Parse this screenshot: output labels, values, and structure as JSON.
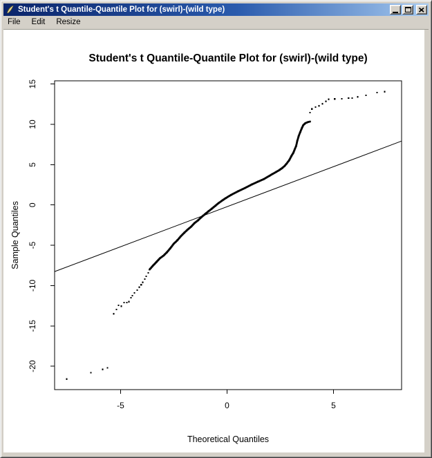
{
  "window": {
    "title": "Student's t Quantile-Quantile Plot for (swirl)-(wild type)",
    "icon_name": "quill-feather-icon",
    "buttons": [
      {
        "name": "minimize"
      },
      {
        "name": "maximize"
      },
      {
        "name": "close"
      }
    ]
  },
  "menu": {
    "items": [
      {
        "label": "File"
      },
      {
        "label": "Edit"
      },
      {
        "label": "Resize"
      }
    ]
  },
  "chart_data": {
    "type": "scatter",
    "title": "Student's t Quantile-Quantile Plot for (swirl)-(wild type)",
    "xlabel": "Theoretical Quantiles",
    "ylabel": "Sample Quantiles",
    "xlim": [
      -8.1,
      8.2
    ],
    "ylim": [
      -22.9,
      15.4
    ],
    "x_ticks": [
      -5,
      0,
      5
    ],
    "y_ticks": [
      15,
      10,
      5,
      0,
      -5,
      -10,
      -15,
      -20
    ],
    "grid": false,
    "legend": null,
    "point_color": "#000000",
    "line_color": "#000000",
    "reference_line": {
      "x1": -8.1,
      "y1": -8.26,
      "x2": 8.2,
      "y2": 7.93
    },
    "dense_curve": [
      [
        -3.64,
        -8.0
      ],
      [
        -3.47,
        -7.5
      ],
      [
        -3.31,
        -7.05
      ],
      [
        -3.15,
        -6.6
      ],
      [
        -2.99,
        -6.3
      ],
      [
        -2.82,
        -5.85
      ],
      [
        -2.66,
        -5.35
      ],
      [
        -2.5,
        -4.8
      ],
      [
        -2.34,
        -4.4
      ],
      [
        -2.18,
        -3.9
      ],
      [
        -2.01,
        -3.45
      ],
      [
        -1.85,
        -3.05
      ],
      [
        -1.69,
        -2.7
      ],
      [
        -1.53,
        -2.25
      ],
      [
        -1.36,
        -1.9
      ],
      [
        -1.2,
        -1.5
      ],
      [
        -1.04,
        -1.15
      ],
      [
        -0.88,
        -0.8
      ],
      [
        -0.71,
        -0.45
      ],
      [
        -0.55,
        -0.1
      ],
      [
        -0.39,
        0.25
      ],
      [
        -0.23,
        0.55
      ],
      [
        -0.06,
        0.85
      ],
      [
        0.19,
        1.25
      ],
      [
        0.52,
        1.7
      ],
      [
        0.84,
        2.1
      ],
      [
        1.17,
        2.55
      ],
      [
        1.46,
        2.9
      ],
      [
        1.72,
        3.2
      ],
      [
        1.98,
        3.6
      ],
      [
        2.14,
        3.85
      ],
      [
        2.31,
        4.1
      ],
      [
        2.47,
        4.35
      ],
      [
        2.6,
        4.6
      ],
      [
        2.69,
        4.8
      ],
      [
        2.79,
        5.1
      ],
      [
        2.92,
        5.55
      ],
      [
        3.02,
        6.05
      ],
      [
        3.12,
        6.5
      ],
      [
        3.18,
        6.9
      ],
      [
        3.25,
        7.35
      ],
      [
        3.3,
        7.95
      ],
      [
        3.36,
        8.5
      ],
      [
        3.44,
        9.05
      ],
      [
        3.51,
        9.5
      ],
      [
        3.58,
        9.9
      ],
      [
        3.68,
        10.15
      ],
      [
        3.8,
        10.28
      ],
      [
        3.9,
        10.35
      ]
    ],
    "sparse_points": [
      [
        -7.53,
        -21.6
      ],
      [
        -6.4,
        -20.8
      ],
      [
        -5.84,
        -20.4
      ],
      [
        -5.62,
        -20.2
      ],
      [
        -5.32,
        -13.5
      ],
      [
        -5.19,
        -12.95
      ],
      [
        -5.1,
        -12.45
      ],
      [
        -4.97,
        -12.55
      ],
      [
        -4.84,
        -12.1
      ],
      [
        -4.71,
        -12.1
      ],
      [
        -4.61,
        -12.0
      ],
      [
        -4.51,
        -11.5
      ],
      [
        -4.45,
        -11.25
      ],
      [
        -4.35,
        -10.9
      ],
      [
        -4.22,
        -10.55
      ],
      [
        -4.12,
        -10.2
      ],
      [
        -4.03,
        -9.9
      ],
      [
        -3.96,
        -9.6
      ],
      [
        -3.86,
        -9.2
      ],
      [
        -3.8,
        -8.85
      ],
      [
        -3.7,
        -8.42
      ],
      [
        3.9,
        11.45
      ],
      [
        3.99,
        11.9
      ],
      [
        4.16,
        12.15
      ],
      [
        4.32,
        12.3
      ],
      [
        4.48,
        12.55
      ],
      [
        4.64,
        12.85
      ],
      [
        4.77,
        13.1
      ],
      [
        5.06,
        13.15
      ],
      [
        5.39,
        13.17
      ],
      [
        5.71,
        13.25
      ],
      [
        5.88,
        13.27
      ],
      [
        6.14,
        13.4
      ],
      [
        6.53,
        13.6
      ],
      [
        7.05,
        13.95
      ],
      [
        7.4,
        14.05
      ]
    ]
  },
  "colors": {
    "titlebar_gradient_left": "#0a246a",
    "titlebar_gradient_right": "#a6caf0",
    "chrome": "#d4d0c8",
    "canvas": "#ffffff",
    "title_text": "#ffffff",
    "plot_ink": "#000000"
  }
}
